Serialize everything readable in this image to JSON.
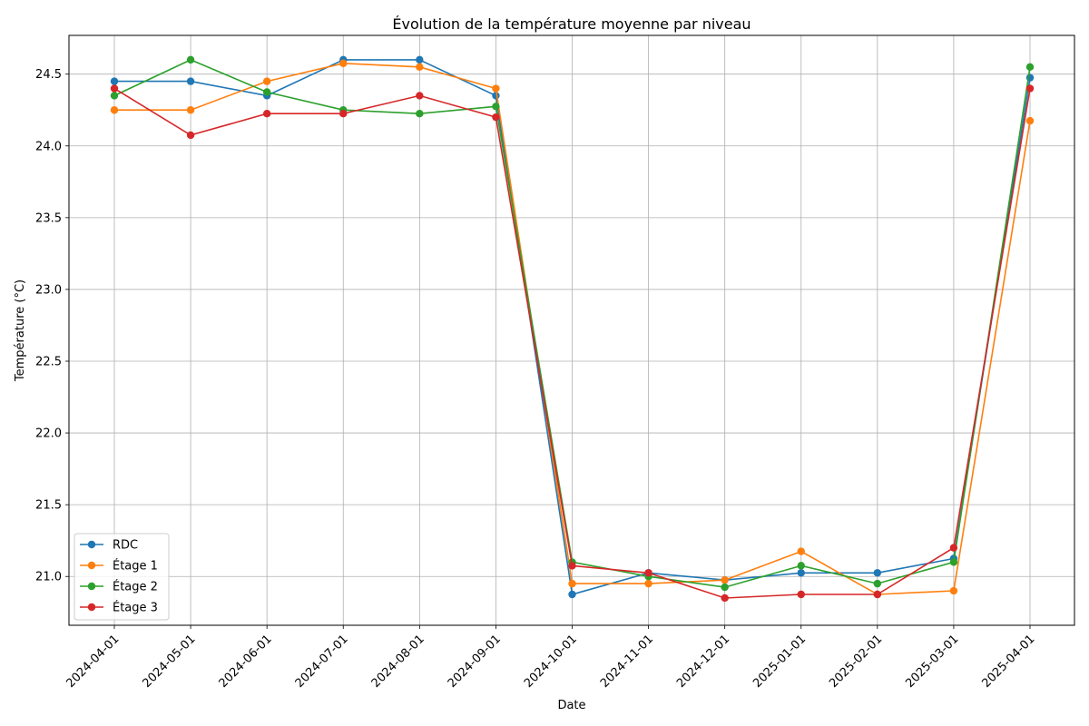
{
  "chart_data": {
    "type": "line",
    "title": "Évolution de la température moyenne par niveau",
    "xlabel": "Date",
    "ylabel": "Température (°C)",
    "categories": [
      "2024-04-01",
      "2024-05-01",
      "2024-06-01",
      "2024-07-01",
      "2024-08-01",
      "2024-09-01",
      "2024-10-01",
      "2024-11-01",
      "2024-12-01",
      "2025-01-01",
      "2025-02-01",
      "2025-03-01",
      "2025-04-01"
    ],
    "ylim": [
      20.66,
      24.77
    ],
    "yticks": [
      21.0,
      21.5,
      22.0,
      22.5,
      23.0,
      23.5,
      24.0,
      24.5
    ],
    "ytick_labels": [
      "21.0",
      "21.5",
      "22.0",
      "22.5",
      "23.0",
      "23.5",
      "24.0",
      "24.5"
    ],
    "grid": true,
    "legend_position": "lower-left",
    "series": [
      {
        "name": "RDC",
        "color": "#1f77b4",
        "values": [
          24.45,
          24.45,
          24.35,
          24.6,
          24.6,
          24.35,
          20.875,
          21.025,
          20.975,
          21.025,
          21.025,
          21.125,
          24.475
        ]
      },
      {
        "name": "Étage 1",
        "color": "#ff7f0e",
        "values": [
          24.25,
          24.25,
          24.45,
          24.575,
          24.55,
          24.4,
          20.95,
          20.95,
          20.975,
          21.175,
          20.875,
          20.9,
          24.175
        ]
      },
      {
        "name": "Étage 2",
        "color": "#2ca02c",
        "values": [
          24.35,
          24.6,
          24.375,
          24.25,
          24.225,
          24.275,
          21.1,
          21.0,
          20.925,
          21.075,
          20.95,
          21.1,
          24.55
        ]
      },
      {
        "name": "Étage 3",
        "color": "#d62728",
        "values": [
          24.4,
          24.075,
          24.225,
          24.225,
          24.35,
          24.2,
          21.075,
          21.025,
          20.85,
          20.875,
          20.875,
          21.2,
          24.4
        ]
      }
    ]
  }
}
